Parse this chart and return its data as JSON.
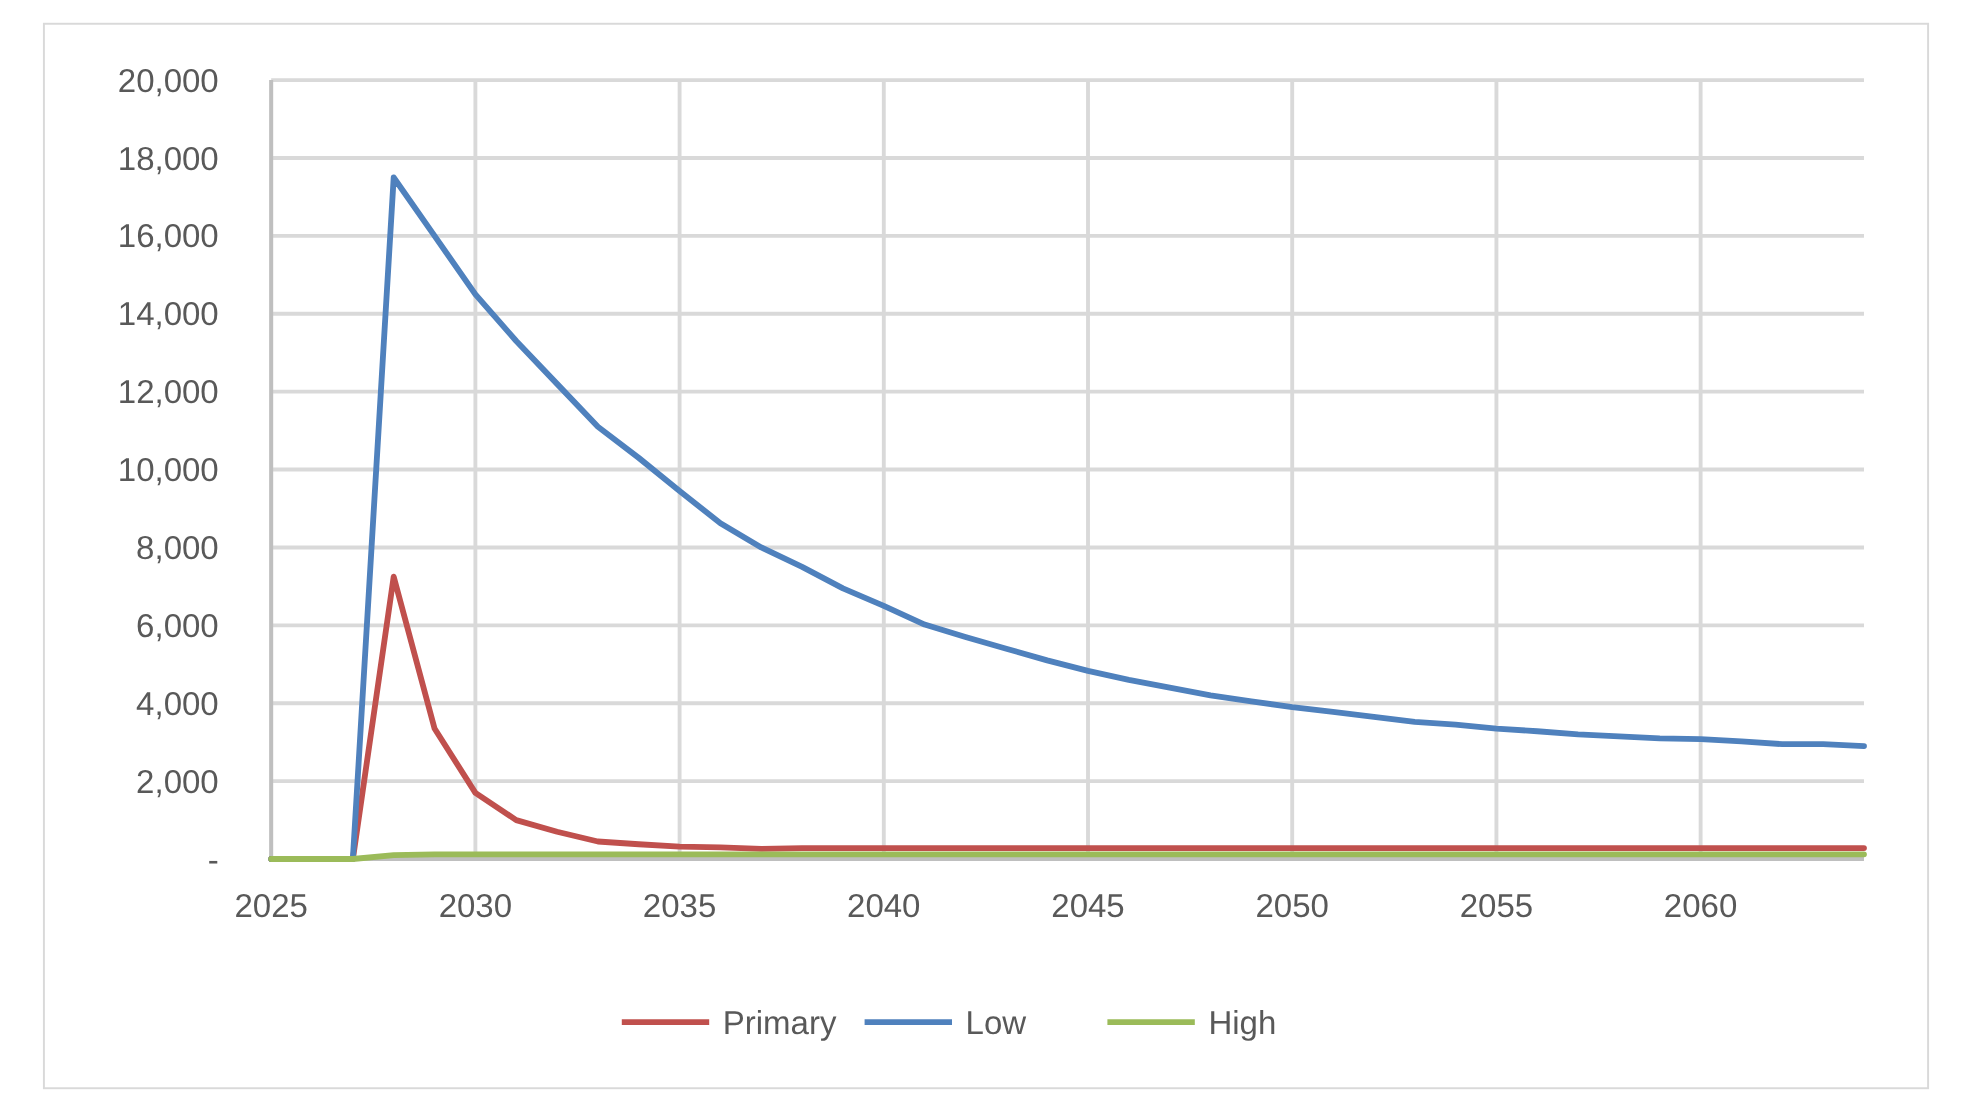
{
  "chart_data": {
    "type": "line",
    "x": [
      2025,
      2026,
      2027,
      2028,
      2029,
      2030,
      2031,
      2032,
      2033,
      2034,
      2035,
      2036,
      2037,
      2038,
      2039,
      2040,
      2041,
      2042,
      2043,
      2044,
      2045,
      2046,
      2047,
      2048,
      2049,
      2050,
      2051,
      2052,
      2053,
      2054,
      2055,
      2056,
      2057,
      2058,
      2059,
      2060,
      2061,
      2062,
      2063,
      2064
    ],
    "series": [
      {
        "name": "Primary",
        "color": "#c0504d",
        "values": [
          0,
          0,
          0,
          7250,
          3350,
          1700,
          1000,
          700,
          450,
          380,
          320,
          300,
          260,
          280,
          280,
          280,
          280,
          280,
          280,
          280,
          280,
          280,
          280,
          280,
          280,
          280,
          280,
          280,
          280,
          280,
          280,
          280,
          280,
          280,
          280,
          280,
          280,
          280,
          280,
          280
        ]
      },
      {
        "name": "Low",
        "color": "#4f81bd",
        "values": [
          0,
          0,
          0,
          17500,
          16000,
          14500,
          13300,
          12200,
          11100,
          10300,
          9450,
          8620,
          8000,
          7500,
          6950,
          6500,
          6020,
          5700,
          5400,
          5100,
          4830,
          4600,
          4400,
          4200,
          4050,
          3900,
          3780,
          3650,
          3520,
          3450,
          3350,
          3280,
          3200,
          3150,
          3100,
          3080,
          3020,
          2950,
          2950,
          2900
        ]
      },
      {
        "name": "High",
        "color": "#9bbb59",
        "values": [
          0,
          0,
          0,
          100,
          120,
          120,
          120,
          120,
          120,
          120,
          120,
          120,
          120,
          120,
          120,
          120,
          120,
          120,
          120,
          120,
          120,
          120,
          120,
          120,
          120,
          120,
          120,
          120,
          120,
          120,
          120,
          120,
          120,
          120,
          120,
          120,
          120,
          120,
          120,
          120
        ]
      }
    ],
    "xlim": [
      2025,
      2064
    ],
    "xticks": [
      2025,
      2030,
      2035,
      2040,
      2045,
      2050,
      2055,
      2060
    ],
    "ylim": [
      0,
      20000
    ],
    "yticks": [
      {
        "value": 0,
        "label": "-"
      },
      {
        "value": 2000,
        "label": "2,000"
      },
      {
        "value": 4000,
        "label": "4,000"
      },
      {
        "value": 6000,
        "label": "6,000"
      },
      {
        "value": 8000,
        "label": "8,000"
      },
      {
        "value": 10000,
        "label": "10,000"
      },
      {
        "value": 12000,
        "label": "12,000"
      },
      {
        "value": 14000,
        "label": "14,000"
      },
      {
        "value": 16000,
        "label": "16,000"
      },
      {
        "value": 18000,
        "label": "18,000"
      },
      {
        "value": 20000,
        "label": "20,000"
      }
    ],
    "grid": true,
    "legend": "bottom",
    "line_style": "solid",
    "marker": "none"
  }
}
